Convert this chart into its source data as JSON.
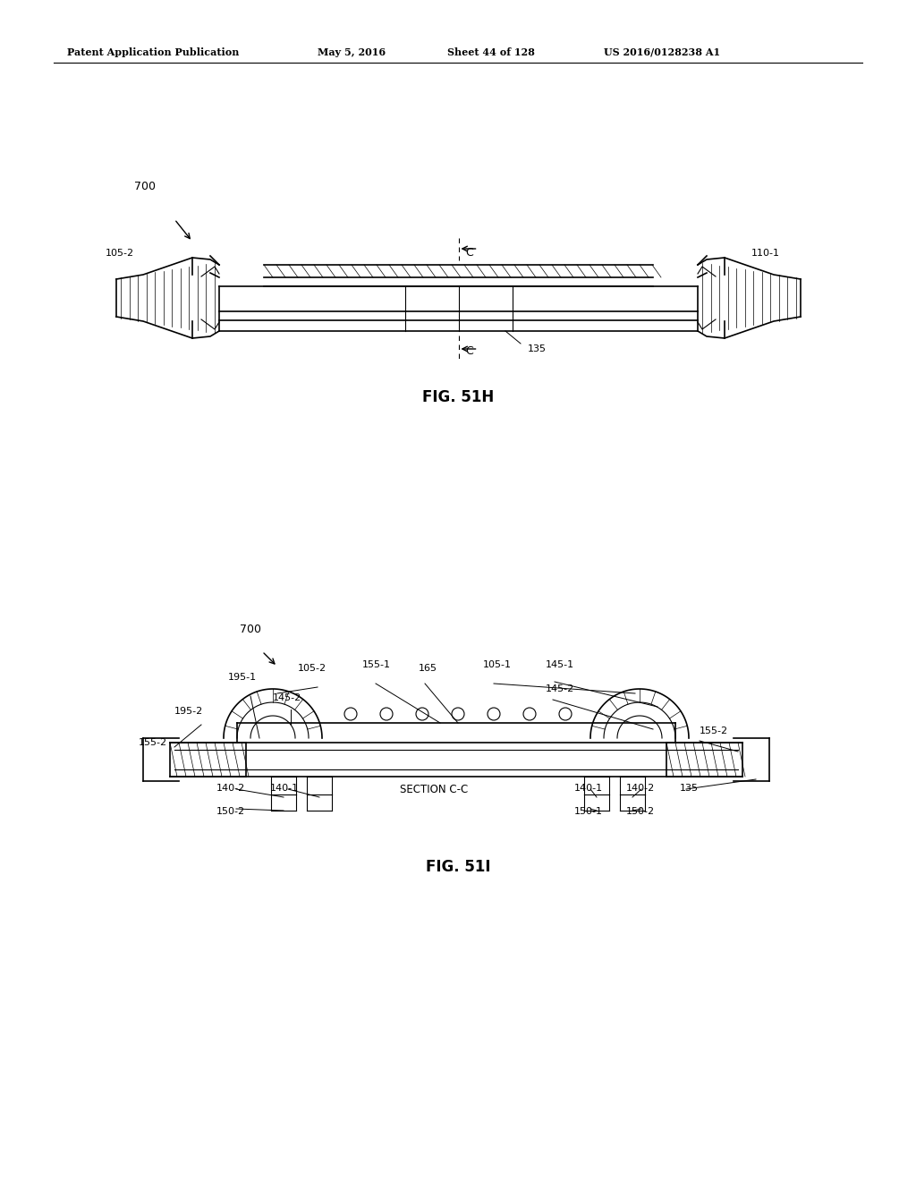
{
  "bg_color": "#ffffff",
  "line_color": "#000000",
  "header_text": "Patent Application Publication",
  "header_date": "May 5, 2016",
  "header_sheet": "Sheet 44 of 128",
  "header_patent": "US 2016/0128238 A1",
  "fig1_label": "FIG. 51H",
  "fig2_label": "FIG. 51I"
}
